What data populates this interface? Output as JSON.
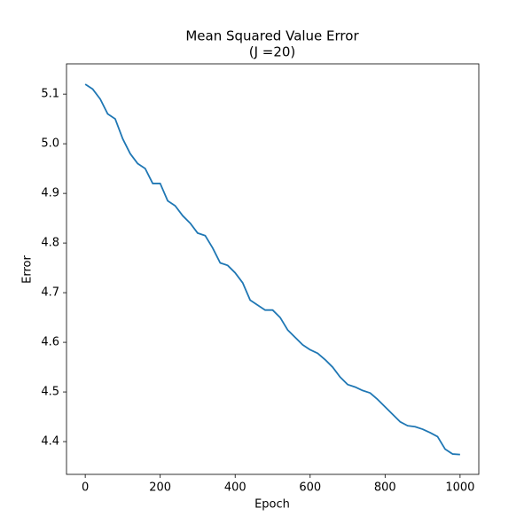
{
  "chart_data": {
    "type": "line",
    "title": "Mean Squared Value Error",
    "subtitle": "(J =20)",
    "x_label": "Epoch",
    "y_label": "Error",
    "color": "#1f77b4",
    "x": [
      0,
      20,
      40,
      60,
      80,
      100,
      120,
      140,
      160,
      180,
      200,
      220,
      240,
      260,
      280,
      300,
      320,
      340,
      360,
      380,
      400,
      420,
      440,
      460,
      480,
      500,
      520,
      540,
      560,
      580,
      600,
      620,
      640,
      660,
      680,
      700,
      720,
      740,
      760,
      780,
      800,
      820,
      840,
      860,
      880,
      900,
      920,
      940,
      960,
      980,
      1000
    ],
    "values": [
      5.12,
      5.11,
      5.09,
      5.06,
      5.05,
      5.01,
      4.98,
      4.96,
      4.95,
      4.92,
      4.92,
      4.885,
      4.875,
      4.855,
      4.84,
      4.82,
      4.815,
      4.79,
      4.76,
      4.755,
      4.74,
      4.72,
      4.685,
      4.675,
      4.665,
      4.665,
      4.65,
      4.625,
      4.61,
      4.595,
      4.585,
      4.578,
      4.565,
      4.55,
      4.53,
      4.515,
      4.51,
      4.503,
      4.498,
      4.485,
      4.47,
      4.455,
      4.44,
      4.432,
      4.43,
      4.425,
      4.418,
      4.41,
      4.385,
      4.375,
      4.374
    ],
    "xlim": [
      -50,
      1050
    ],
    "ylim": [
      4.334,
      5.161
    ],
    "xticks": [
      0,
      200,
      400,
      600,
      800,
      1000
    ],
    "yticks": [
      4.4,
      4.5,
      4.6,
      4.7,
      4.8,
      4.9,
      {
        "value": 5,
        "label": "5.0"
      },
      5.1
    ]
  }
}
